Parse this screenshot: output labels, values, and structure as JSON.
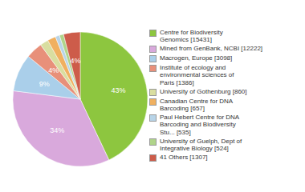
{
  "chart_data": {
    "type": "pie",
    "categories": [
      "Centre for Biodiversity\nGenomics [15431]",
      "Mined from GenBank, NCBI [12222]",
      "Macrogen, Europe [3098]",
      "Institute of ecology and\nenvironmental sciences of\nParis [1386]",
      "University of Gothenburg [860]",
      "Canadian Centre for DNA\nBarcoding [657]",
      "Paul Hebert Centre for DNA\nBarcoding and Biodiversity\nStu... [535]",
      "University of Guelph, Dept of\nIntegrative Biology [524]",
      "41 Others [1307]"
    ],
    "values": [
      43,
      34,
      9,
      4,
      2,
      2,
      1,
      1,
      4
    ],
    "value_labels": [
      "43%",
      "34%",
      "9%",
      "4%",
      null,
      null,
      null,
      null,
      "4%"
    ],
    "data_labels": true,
    "colors": [
      "#8dc63f",
      "#d9a9dc",
      "#aacfea",
      "#e8907a",
      "#d9dea0",
      "#f0b060",
      "#b8d4e8",
      "#b0d48a",
      "#cd5c4a"
    ],
    "legend": "right"
  }
}
